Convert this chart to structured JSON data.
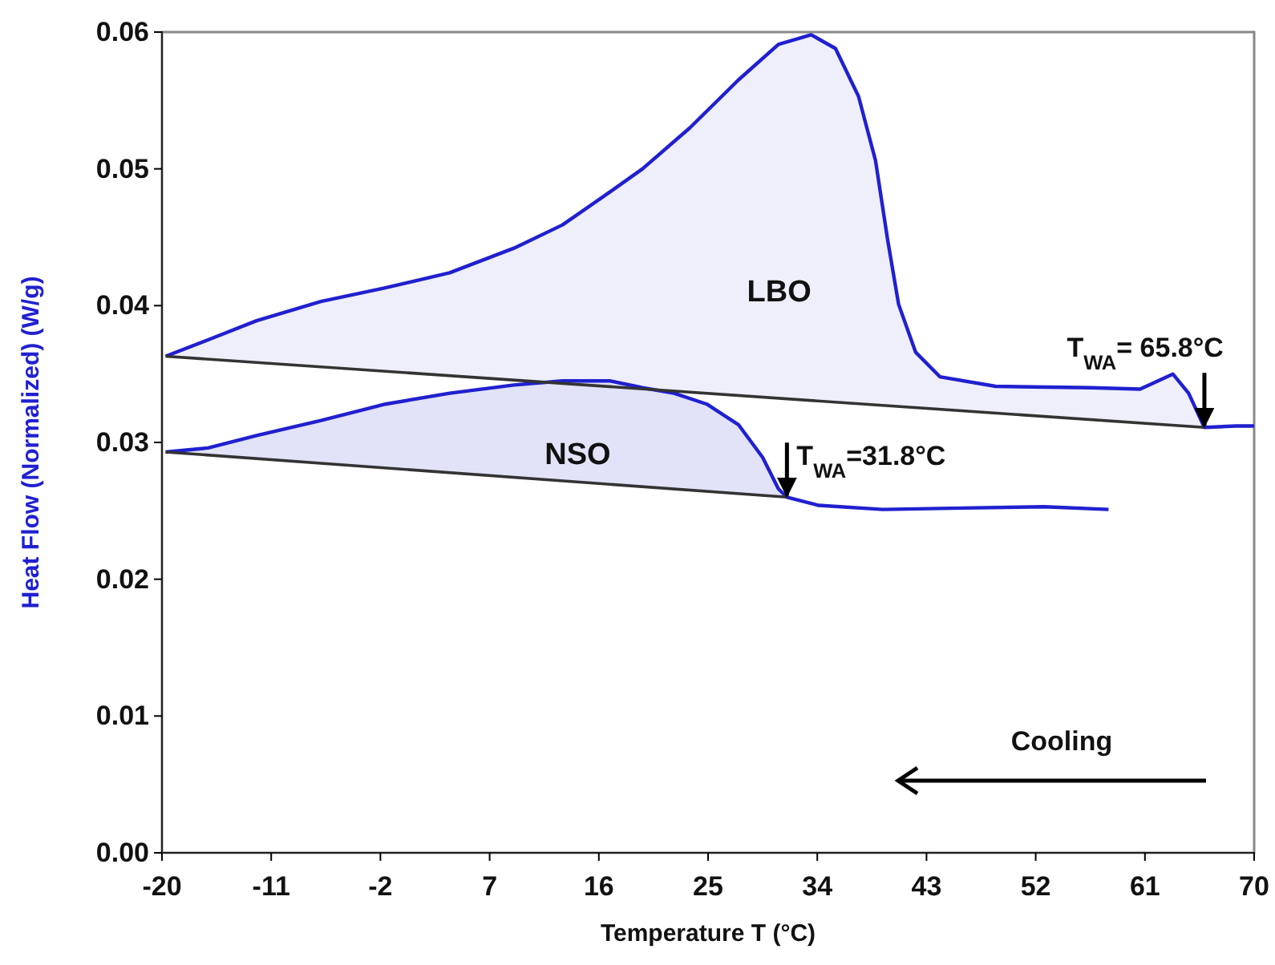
{
  "chart_data": {
    "type": "line",
    "xlabel": "Temperature T (°C)",
    "ylabel": "Heat Flow (Normalized)  (W/g)",
    "xlim": [
      -20,
      70
    ],
    "xticks": [
      -20,
      -11,
      -2,
      7,
      16,
      25,
      34,
      43,
      52,
      61,
      70
    ],
    "ylim": [
      0,
      0.06
    ],
    "yticks": [
      {
        "value": 0,
        "label": "0.00"
      },
      {
        "value": 0.01,
        "label": "0.01"
      },
      {
        "value": 0.02,
        "label": "0.02"
      },
      {
        "value": 0.03,
        "label": "0.03"
      },
      {
        "value": 0.04,
        "label": "0.04"
      },
      {
        "value": 0.05,
        "label": "0.05"
      },
      {
        "value": 0.06,
        "label": "0.06"
      }
    ],
    "grid": false,
    "marker": "none",
    "line_style": "solid",
    "series": [
      {
        "name": "LBO",
        "color": "#2020d0",
        "x": [
          -19.7,
          -16.2,
          -12.2,
          -6.9,
          -1.6,
          3.7,
          9.0,
          13.0,
          16.9,
          19.6,
          23.5,
          27.5,
          30.8,
          33.5,
          35.5,
          37.4,
          38.8,
          39.8,
          40.7,
          42.1,
          44.1,
          48.7,
          56.6,
          60.6,
          63.3,
          64.6,
          65.9,
          68.5,
          70
        ],
        "values": [
          0.0363,
          0.0375,
          0.0389,
          0.0403,
          0.0413,
          0.0424,
          0.0442,
          0.0459,
          0.0483,
          0.05,
          0.053,
          0.0565,
          0.0591,
          0.0598,
          0.0588,
          0.0553,
          0.0506,
          0.0448,
          0.0401,
          0.0366,
          0.0348,
          0.0341,
          0.034,
          0.0339,
          0.035,
          0.0336,
          0.0311,
          0.0312,
          0.0312
        ],
        "lower": [
          0.0363,
          0.0361,
          0.0358,
          0.0355,
          0.0352,
          0.0349,
          0.0346,
          0.0343,
          0.0341,
          0.0339,
          0.0337,
          0.0334,
          0.0332,
          0.0331,
          0.0329,
          0.0328,
          0.0327,
          0.0327,
          0.0326,
          0.0325,
          0.0324,
          0.0321,
          0.0317,
          0.0314,
          0.0313,
          0.0312,
          0.0311,
          null,
          null
        ],
        "upper": [
          0.0363,
          0.0375,
          0.0389,
          0.0403,
          0.0413,
          0.0424,
          0.0442,
          0.0459,
          0.0483,
          0.05,
          0.053,
          0.0565,
          0.0591,
          0.0598,
          0.0588,
          0.0553,
          0.0506,
          0.0448,
          0.0401,
          0.0366,
          0.0348,
          0.0341,
          0.034,
          0.0339,
          0.035,
          0.0336,
          0.0311,
          null,
          null
        ]
      },
      {
        "name": "NSO",
        "color": "#2020d0",
        "x": [
          -19.7,
          -16.2,
          -12.2,
          -6.9,
          -1.6,
          3.7,
          9.0,
          13.0,
          16.9,
          19.6,
          22.2,
          24.9,
          27.5,
          29.5,
          30.8,
          31.5,
          34.1,
          39.4,
          46.0,
          52.7,
          58.0
        ],
        "values": [
          0.0293,
          0.0296,
          0.0305,
          0.0316,
          0.0328,
          0.0336,
          0.0342,
          0.0345,
          0.0345,
          0.034,
          0.0336,
          0.0328,
          0.0313,
          0.0289,
          0.0266,
          0.026,
          0.0254,
          0.0251,
          0.0252,
          0.0253,
          0.0251
        ],
        "lower": [
          0.0293,
          0.0291,
          0.0288,
          0.0285,
          0.0281,
          0.0278,
          0.0274,
          0.0272,
          0.0269,
          0.0268,
          0.0266,
          0.0264,
          0.0263,
          0.0261,
          0.026,
          0.026,
          null,
          null,
          null,
          null,
          null
        ],
        "upper": [
          0.0293,
          0.0296,
          0.0305,
          0.0316,
          0.0328,
          0.0336,
          0.0342,
          0.0345,
          0.0345,
          0.034,
          0.0336,
          0.0328,
          0.0313,
          0.0289,
          0.0266,
          0.026,
          null,
          null,
          null,
          null,
          null
        ]
      },
      {
        "type": "line",
        "color": "#333333",
        "x": [
          -19.7,
          65.9
        ],
        "values": [
          0.0363,
          0.0311
        ]
      },
      {
        "type": "line",
        "color": "#333333",
        "x": [
          -19.7,
          31.5
        ],
        "values": [
          0.0293,
          0.026
        ]
      }
    ],
    "annotations": [
      {
        "text": "T$_{WA}$= 65.8°C",
        "x": 65.9,
        "y": 0.0311
      },
      {
        "text": "T$_{WA}$=31.8°C",
        "x": 31.5,
        "y": 0.026
      },
      "Cooling"
    ]
  }
}
